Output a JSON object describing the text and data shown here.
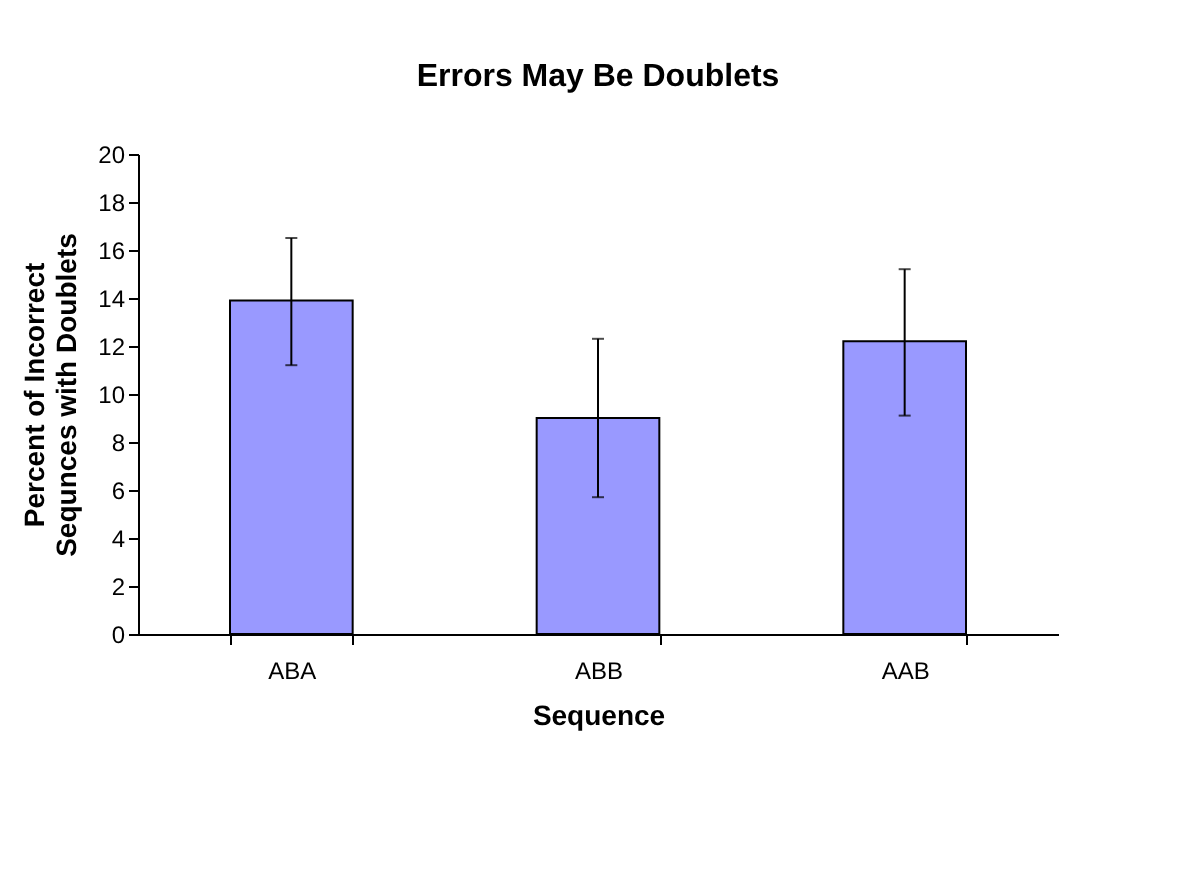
{
  "chart_data": {
    "type": "bar",
    "title": "Errors May Be Doublets",
    "xlabel": "Sequence",
    "ylabel": "Percent of Incorrect\nSequnces with Doublets",
    "categories": [
      "ABA",
      "ABB",
      "AAB"
    ],
    "values": [
      13.9,
      9.0,
      12.2
    ],
    "errors": [
      [
        11.2,
        16.5
      ],
      [
        5.7,
        12.3
      ],
      [
        9.1,
        15.2
      ]
    ],
    "color": "#9999ff",
    "ylim": [
      0,
      20
    ],
    "yticks": [
      0,
      2,
      4,
      6,
      8,
      10,
      12,
      14,
      16,
      18,
      20
    ],
    "grid": false
  }
}
